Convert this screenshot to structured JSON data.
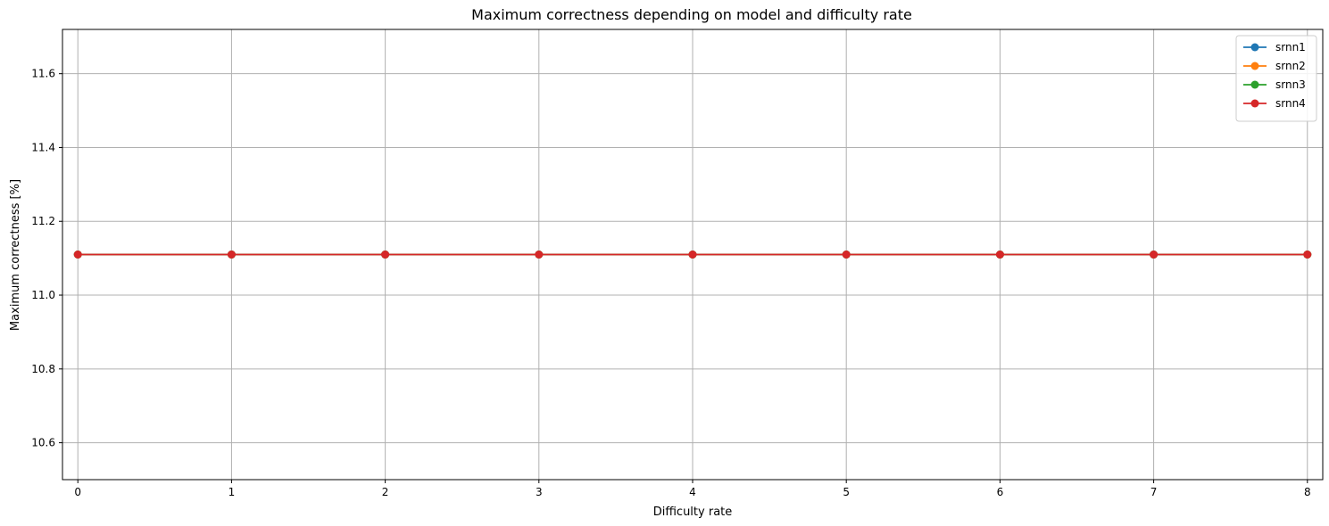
{
  "chart_data": {
    "type": "line",
    "title": "Maximum correctness depending on model and difficulty rate",
    "xlabel": "Difficulty rate",
    "ylabel": "Maximum correctness [%]",
    "x": [
      0,
      1,
      2,
      3,
      4,
      5,
      6,
      7,
      8
    ],
    "x_tick_labels": [
      "0",
      "1",
      "2",
      "3",
      "4",
      "5",
      "6",
      "7",
      "8"
    ],
    "y_ticks": [
      10.6,
      10.8,
      11.0,
      11.2,
      11.4,
      11.6
    ],
    "y_tick_labels": [
      "10.6",
      "10.8",
      "11.0",
      "11.2",
      "11.4",
      "11.6"
    ],
    "xlim": [
      -0.1,
      8.1
    ],
    "ylim": [
      10.5,
      11.72
    ],
    "grid": true,
    "legend_position": "top-right",
    "markers": "circle",
    "series": [
      {
        "name": "srnn1",
        "color": "#1f77b4",
        "values": [
          11.11,
          11.11,
          11.11,
          11.11,
          11.11,
          11.11,
          11.11,
          11.11,
          11.11
        ]
      },
      {
        "name": "srnn2",
        "color": "#ff7f0e",
        "values": [
          11.11,
          11.11,
          11.11,
          11.11,
          11.11,
          11.11,
          11.11,
          11.11,
          11.11
        ]
      },
      {
        "name": "srnn3",
        "color": "#2ca02c",
        "values": [
          11.11,
          11.11,
          11.11,
          11.11,
          11.11,
          11.11,
          11.11,
          11.11,
          11.11
        ]
      },
      {
        "name": "srnn4",
        "color": "#d62728",
        "values": [
          11.11,
          11.11,
          11.11,
          11.11,
          11.11,
          11.11,
          11.11,
          11.11,
          11.11
        ]
      }
    ]
  }
}
